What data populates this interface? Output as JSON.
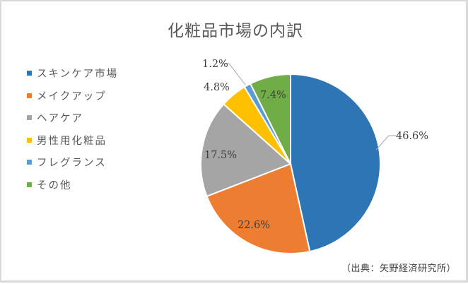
{
  "chart_data": {
    "type": "pie",
    "title": "化粧品市場の内訳",
    "categories": [
      "スキンケア市場",
      "メイクアップ",
      "ヘアケア",
      "男性用化粧品",
      "フレグランス",
      "その他"
    ],
    "values": [
      46.6,
      22.6,
      17.5,
      4.8,
      1.2,
      7.4
    ],
    "labels": [
      "46.6%",
      "22.6%",
      "17.5%",
      "4.8%",
      "1.2%",
      "7.4%"
    ],
    "colors": [
      "#2e75b6",
      "#ed7d31",
      "#a5a5a5",
      "#ffc000",
      "#5b9bd5",
      "#70ad47"
    ],
    "unit": "%",
    "start_angle": "12 o'clock, clockwise",
    "legend_position": "left",
    "source_note": "（出典：矢野経済研究所）"
  },
  "title": "化粧品市場の内訳",
  "legend": [
    {
      "label": "スキンケア市場",
      "color": "#2e75b6"
    },
    {
      "label": "メイクアップ",
      "color": "#ed7d31"
    },
    {
      "label": "ヘアケア",
      "color": "#a5a5a5"
    },
    {
      "label": "男性用化粧品",
      "color": "#ffc000"
    },
    {
      "label": "フレグランス",
      "color": "#5b9bd5"
    },
    {
      "label": "その他",
      "color": "#70ad47"
    }
  ],
  "data_labels": {
    "skincare": "46.6%",
    "makeup": "22.6%",
    "haircare": "17.5%",
    "mens": "4.8%",
    "fragrance": "1.2%",
    "other": "7.4%"
  },
  "source": "（出典：矢野経済研究所）"
}
